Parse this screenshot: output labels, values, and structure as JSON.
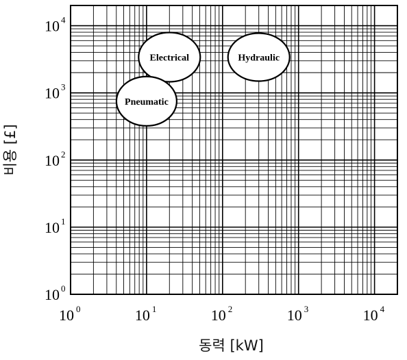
{
  "chart_data": {
    "type": "scatter",
    "title": "",
    "xlabel": "동력 [kW]",
    "ylabel": "비용 [£]",
    "x_scale": "log",
    "y_scale": "log",
    "xlim": [
      1,
      20000
    ],
    "ylim": [
      1,
      20000
    ],
    "grid": true,
    "x_ticks": [
      {
        "base": "10",
        "exp": "0"
      },
      {
        "base": "10",
        "exp": "1"
      },
      {
        "base": "10",
        "exp": "2"
      },
      {
        "base": "10",
        "exp": "3"
      },
      {
        "base": "10",
        "exp": "4"
      }
    ],
    "y_ticks": [
      {
        "base": "10",
        "exp": "0"
      },
      {
        "base": "10",
        "exp": "1"
      },
      {
        "base": "10",
        "exp": "2"
      },
      {
        "base": "10",
        "exp": "3"
      },
      {
        "base": "10",
        "exp": "4"
      }
    ],
    "regions": [
      {
        "label": "Electrical",
        "x_center": 20,
        "y_center": 3400
      },
      {
        "label": "Hydraulic",
        "x_center": 300,
        "y_center": 3400
      },
      {
        "label": "Pneumatic",
        "x_center": 10,
        "y_center": 750
      }
    ]
  }
}
